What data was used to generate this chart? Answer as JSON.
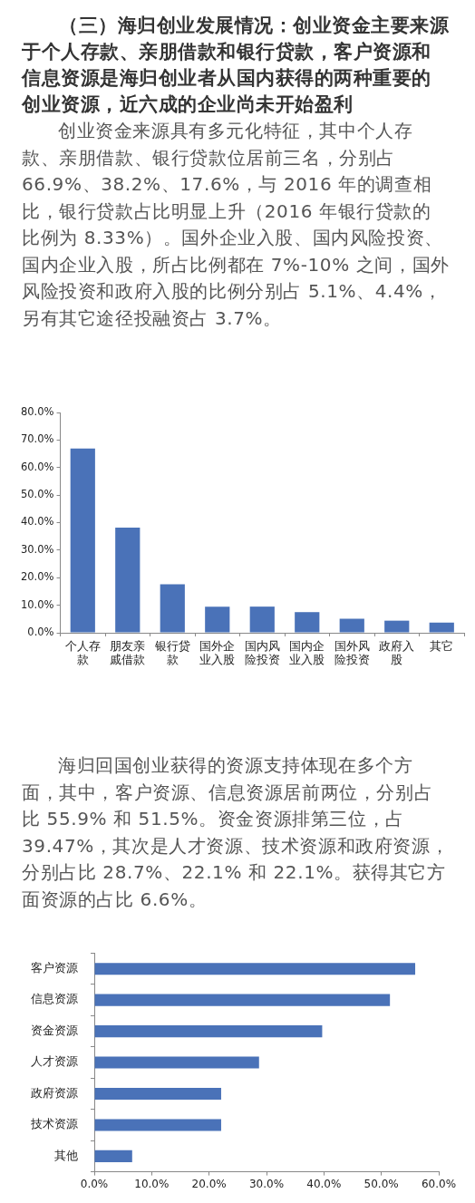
{
  "chart_data": [
    {
      "type": "bar",
      "title": "（三）海归创业发展情况：创业资金主要来源于个人存款、亲朋借款和银行贷款，客户资源和信息资源是海归创业者从国内获得的两种重要的创业资源，近六成的企业尚未开始盈利",
      "annotations": [
        "创业资金来源具有多元化特征，其中个人存款、亲朋借款、银行贷款位居前三名，分别占66.9%、38.2%、17.6%，与 2016 年的调查相比，银行贷款占比明显上升（2016 年银行贷款的比例为 8.33%）。国外企业入股、国内风险投资、国内企业入股，所占比例都在 7%-10% 之间，国外风险投资和政府入股的比例分别占 5.1%、4.4%，另有其它途径投融资占 3.7%。"
      ],
      "categories": [
        "个人存款",
        "朋友亲戚借款",
        "银行贷款",
        "国外企业入股",
        "国内风险投资",
        "国内企业入股",
        "国外风险投资",
        "政府入股",
        "其它"
      ],
      "values": [
        66.9,
        38.2,
        17.6,
        9.5,
        9.5,
        7.5,
        5.1,
        4.4,
        3.7
      ],
      "color": "#4a72b8",
      "ylim": [
        0,
        80
      ],
      "yticks": [
        {
          "value": 0,
          "label": "0.0%"
        },
        {
          "value": 10,
          "label": "10.0%"
        },
        {
          "value": 20,
          "label": "20.0%"
        },
        {
          "value": 30,
          "label": "30.0%"
        },
        {
          "value": 40,
          "label": "40.0%"
        },
        {
          "value": 50,
          "label": "50.0%"
        },
        {
          "value": 60,
          "label": "60.0%"
        },
        {
          "value": 70,
          "label": "70.0%"
        },
        {
          "value": 80,
          "label": "80.0%"
        }
      ]
    },
    {
      "type": "bar",
      "orientation": "horizontal",
      "annotations": [
        "海归回国创业获得的资源支持体现在多个方面，其中，客户资源、信息资源居前两位，分别占比 55.9% 和 51.5%。资金资源排第三位，占39.47%，其次是人才资源、技术资源和政府资源，分别占比 28.7%、22.1% 和 22.1%。获得其它方面资源的占比 6.6%。"
      ],
      "categories": [
        "客户资源",
        "信息资源",
        "资金资源",
        "人才资源",
        "政府资源",
        "技术资源",
        "其他"
      ],
      "values": [
        55.9,
        51.5,
        39.7,
        28.7,
        22.1,
        22.1,
        6.6
      ],
      "color": "#4a72b8",
      "xlim": [
        0,
        60
      ],
      "xticks": [
        {
          "value": 0,
          "label": "0.0%"
        },
        {
          "value": 10,
          "label": "10.0%"
        },
        {
          "value": 20,
          "label": "20.0%"
        },
        {
          "value": 30,
          "label": "30.0%"
        },
        {
          "value": 40,
          "label": "40.0%"
        },
        {
          "value": 50,
          "label": "50.0%"
        },
        {
          "value": 60,
          "label": "60.0%"
        }
      ]
    }
  ]
}
